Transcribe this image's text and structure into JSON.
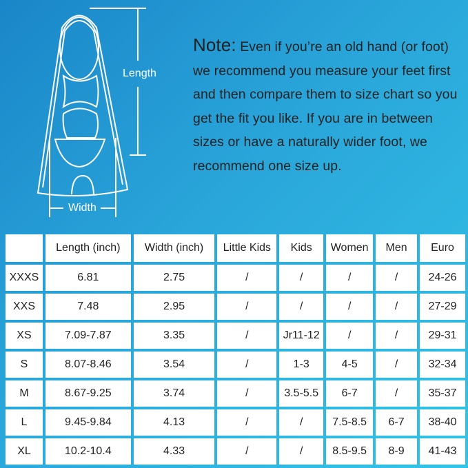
{
  "diagram": {
    "length_label": "Length",
    "width_label": "Width"
  },
  "note": {
    "heading": "Note:",
    "text": "Even if you’re an old hand (or foot) we recommend you measure your feet first and then compare them to size chart so you get the fit you like. If you are in between sizes or have a naturally wider foot, we recommend one size up."
  },
  "table": {
    "headers": [
      "",
      "Length (inch)",
      "Width (inch)",
      "Little Kids",
      "Kids",
      "Women",
      "Men",
      "Euro"
    ],
    "rows": [
      [
        "XXXS",
        "6.81",
        "2.75",
        "/",
        "/",
        "/",
        "/",
        "24-26"
      ],
      [
        "XXS",
        "7.48",
        "2.95",
        "/",
        "/",
        "/",
        "/",
        "27-29"
      ],
      [
        "XS",
        "7.09-7.87",
        "3.35",
        "/",
        "Jr11-12",
        "/",
        "/",
        "29-31"
      ],
      [
        "S",
        "8.07-8.46",
        "3.54",
        "/",
        "1-3",
        "4-5",
        "/",
        "32-34"
      ],
      [
        "M",
        "8.67-9.25",
        "3.74",
        "/",
        "3.5-5.5",
        "6-7",
        "/",
        "35-37"
      ],
      [
        "L",
        "9.45-9.84",
        "4.13",
        "/",
        "/",
        "7.5-8.5",
        "6-7",
        "38-40"
      ],
      [
        "XL",
        "10.2-10.4",
        "4.33",
        "/",
        "/",
        "8.5-9.5",
        "8-9",
        "41-43"
      ]
    ]
  }
}
